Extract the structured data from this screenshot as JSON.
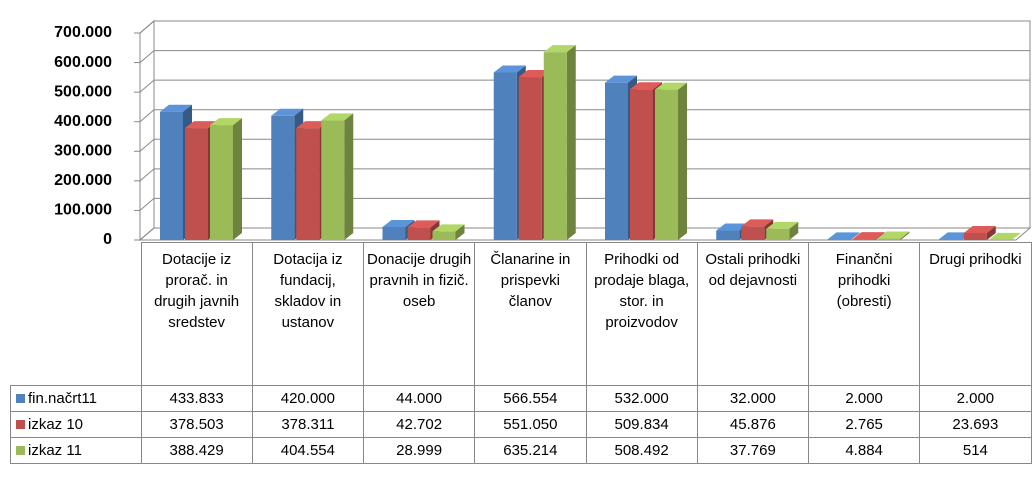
{
  "chart_data": {
    "type": "bar3d",
    "categories": [
      "Dotacije iz prorač. in drugih javnih sredstev",
      "Dotacija iz fundacij, skladov in ustanov",
      "Donacije drugih pravnih in fizič. oseb",
      "Članarine in prispevki članov",
      "Prihodki od prodaje blaga, stor. in proizvodov",
      "Ostali prihodki od dejavnosti",
      "Finančni prihodki (obresti)",
      "Drugi prihodki"
    ],
    "series": [
      {
        "name": "fin.načrt11",
        "color": "#4f81bd",
        "values": [
          433833,
          420000,
          44000,
          566554,
          532000,
          32000,
          2000,
          2000
        ],
        "value_labels": [
          "433.833",
          "420.000",
          "44.000",
          "566.554",
          "532.000",
          "32.000",
          "2.000",
          "2.000"
        ]
      },
      {
        "name": "izkaz 10",
        "color": "#c0504d",
        "values": [
          378503,
          378311,
          42702,
          551050,
          509834,
          45876,
          2765,
          23693
        ],
        "value_labels": [
          "378.503",
          "378.311",
          "42.702",
          "551.050",
          "509.834",
          "45.876",
          "2.765",
          "23.693"
        ]
      },
      {
        "name": "izkaz 11",
        "color": "#9bbb59",
        "values": [
          388429,
          404554,
          28999,
          635214,
          508492,
          37769,
          4884,
          514
        ],
        "value_labels": [
          "388.429",
          "404.554",
          "28.999",
          "635.214",
          "508.492",
          "37.769",
          "4.884",
          "514"
        ]
      }
    ],
    "ylim": [
      0,
      700000
    ],
    "yticks": [
      0,
      {
        "value": 100000,
        "label": "100.000"
      },
      {
        "value": 200000,
        "label": "200.000"
      },
      {
        "value": 300000,
        "label": "300.000"
      },
      {
        "value": 400000,
        "label": "400.000"
      },
      {
        "value": 500000,
        "label": "500.000"
      },
      {
        "value": 600000,
        "label": "600.000"
      },
      {
        "value": 700000,
        "label": "700.000"
      }
    ],
    "grid": true
  }
}
